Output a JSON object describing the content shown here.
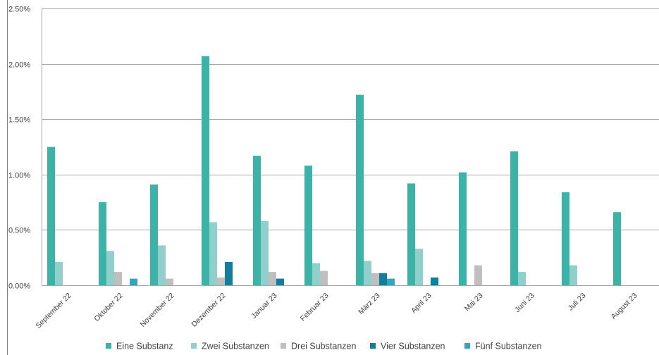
{
  "chart_data": {
    "type": "bar",
    "title": "",
    "xlabel": "",
    "ylabel": "",
    "ylim": [
      0,
      0.025
    ],
    "y_ticks": [
      "0.00%",
      "0.50%",
      "1.00%",
      "1.50%",
      "2.00%",
      "2.50%"
    ],
    "y_tick_values": [
      0,
      0.005,
      0.01,
      0.015,
      0.02,
      0.025
    ],
    "grid": true,
    "legend_position": "bottom",
    "categories": [
      "September 22",
      "Oktober 22",
      "November 22",
      "Dezember 22",
      "Januar 23",
      "Februar 23",
      "März 23",
      "April 23",
      "Mai 23",
      "Juni 23",
      "Juli 23",
      "August 23"
    ],
    "series": [
      {
        "name": "Eine Substanz",
        "color": "#3cb3a6",
        "values": [
          0.0125,
          0.0075,
          0.0091,
          0.0207,
          0.0117,
          0.0108,
          0.0172,
          0.0092,
          0.0102,
          0.0121,
          0.0084,
          0.0066
        ]
      },
      {
        "name": "Zwei Substanzen",
        "color": "#90cfcb",
        "values": [
          0.0021,
          0.0031,
          0.0036,
          0.0057,
          0.0058,
          0.002,
          0.0022,
          0.0033,
          0,
          0.0012,
          0.0018,
          0
        ]
      },
      {
        "name": "Drei Substanzen",
        "color": "#bfbfbf",
        "values": [
          0,
          0.0012,
          0.0006,
          0.0007,
          0.0012,
          0.0013,
          0.0011,
          0,
          0.0018,
          0,
          0,
          0
        ]
      },
      {
        "name": "Vier Substanzen",
        "color": "#137e9b",
        "values": [
          0,
          0,
          0,
          0.0021,
          0.0006,
          0,
          0.0011,
          0.0007,
          0,
          0,
          0,
          0
        ]
      },
      {
        "name": "Fünf Substanzen",
        "color": "#35a5bc",
        "values": [
          0,
          0.0006,
          0,
          0,
          0,
          0,
          0.0006,
          0,
          0,
          0,
          0,
          0
        ]
      }
    ]
  }
}
